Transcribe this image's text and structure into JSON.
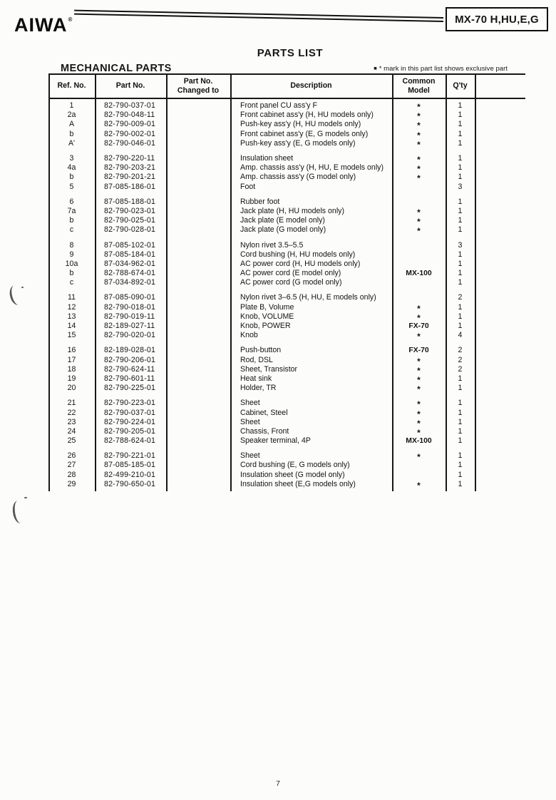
{
  "brand": {
    "logo": "AIWA",
    "mark": "®"
  },
  "model_box": {
    "label": "MX-70 H,HU,E,G"
  },
  "page": {
    "title": "PARTS LIST",
    "section": "MECHANICAL PARTS",
    "legend_bullet": "■",
    "legend_text": "* mark in this part list shows exclusive part",
    "page_number": "7"
  },
  "table": {
    "headers": {
      "ref": "Ref. No.",
      "part": "Part No.",
      "changed_line1": "Part No.",
      "changed_line2": "Changed to",
      "description": "Description",
      "common_line1": "Common",
      "common_line2": "Model",
      "qty": "Q'ty"
    },
    "groups": [
      {
        "rows": [
          {
            "ref": "1",
            "part": "82-790-037-01",
            "changed": "",
            "desc": "Front panel CU ass'y F",
            "common": "*",
            "qty": "1"
          },
          {
            "ref": "2a",
            "part": "82-790-048-11",
            "changed": "",
            "desc": "Front cabinet ass'y (H, HU models only)",
            "common": "*",
            "qty": "1"
          },
          {
            "ref": "A",
            "part": "82-790-009-01",
            "changed": "",
            "desc": "Push-key ass'y (H, HU models only)",
            "common": "*",
            "qty": "1"
          },
          {
            "ref": "b",
            "part": "82-790-002-01",
            "changed": "",
            "desc": "Front cabinet ass'y (E, G models only)",
            "common": "*",
            "qty": "1"
          },
          {
            "ref": "A'",
            "part": "82-790-046-01",
            "changed": "",
            "desc": "Push-key ass'y (E, G models only)",
            "common": "*",
            "qty": "1"
          }
        ]
      },
      {
        "rows": [
          {
            "ref": "3",
            "part": "82-790-220-11",
            "changed": "",
            "desc": "Insulation sheet",
            "common": "*",
            "qty": "1"
          },
          {
            "ref": "4a",
            "part": "82-790-203-21",
            "changed": "",
            "desc": "Amp. chassis ass'y (H, HU, E models only)",
            "common": "*",
            "qty": "1"
          },
          {
            "ref": "b",
            "part": "82-790-201-21",
            "changed": "",
            "desc": "Amp. chassis ass'y (G model only)",
            "common": "*",
            "qty": "1"
          },
          {
            "ref": "5",
            "part": "87-085-186-01",
            "changed": "",
            "desc": "Foot",
            "common": "",
            "qty": "3"
          }
        ]
      },
      {
        "rows": [
          {
            "ref": "6",
            "part": "87-085-188-01",
            "changed": "",
            "desc": "Rubber foot",
            "common": "",
            "qty": "1"
          },
          {
            "ref": "7a",
            "part": "82-790-023-01",
            "changed": "",
            "desc": "Jack plate (H, HU models only)",
            "common": "*",
            "qty": "1"
          },
          {
            "ref": "b",
            "part": "82-790-025-01",
            "changed": "",
            "desc": "Jack plate (E model only)",
            "common": "*",
            "qty": "1"
          },
          {
            "ref": "c",
            "part": "82-790-028-01",
            "changed": "",
            "desc": "Jack plate (G model only)",
            "common": "*",
            "qty": "1"
          }
        ]
      },
      {
        "rows": [
          {
            "ref": "8",
            "part": "87-085-102-01",
            "changed": "",
            "desc": "Nylon rivet 3.5–5.5",
            "common": "",
            "qty": "3"
          },
          {
            "ref": "9",
            "part": "87-085-184-01",
            "changed": "",
            "desc": "Cord bushing (H, HU models only)",
            "common": "",
            "qty": "1"
          },
          {
            "ref": "10a",
            "part": "87-034-962-01",
            "changed": "",
            "desc": "AC power cord (H, HU models only)",
            "common": "",
            "qty": "1"
          },
          {
            "ref": "b",
            "part": "82-788-674-01",
            "changed": "",
            "desc": "AC power cord (E model only)",
            "common": "MX-100",
            "qty": "1"
          },
          {
            "ref": "c",
            "part": "87-034-892-01",
            "changed": "",
            "desc": "AC power cord (G model only)",
            "common": "",
            "qty": "1"
          }
        ]
      },
      {
        "rows": [
          {
            "ref": "11",
            "part": "87-085-090-01",
            "changed": "",
            "desc": "Nylon rivet 3–6.5 (H, HU, E models only)",
            "common": "",
            "qty": "2"
          },
          {
            "ref": "12",
            "part": "82-790-018-01",
            "changed": "",
            "desc": "Plate B, Volume",
            "common": "*",
            "qty": "1"
          },
          {
            "ref": "13",
            "part": "82-790-019-11",
            "changed": "",
            "desc": "Knob, VOLUME",
            "common": "*",
            "qty": "1"
          },
          {
            "ref": "14",
            "part": "82-189-027-11",
            "changed": "",
            "desc": "Knob, POWER",
            "common": "FX-70",
            "qty": "1"
          },
          {
            "ref": "15",
            "part": "82-790-020-01",
            "changed": "",
            "desc": "Knob",
            "common": "*",
            "qty": "4"
          }
        ]
      },
      {
        "rows": [
          {
            "ref": "16",
            "part": "82-189-028-01",
            "changed": "",
            "desc": "Push-button",
            "common": "FX-70",
            "qty": "2"
          },
          {
            "ref": "17",
            "part": "82-790-206-01",
            "changed": "",
            "desc": "Rod, DSL",
            "common": "*",
            "qty": "2"
          },
          {
            "ref": "18",
            "part": "82-790-624-11",
            "changed": "",
            "desc": "Sheet, Transistor",
            "common": "*",
            "qty": "2"
          },
          {
            "ref": "19",
            "part": "82-790-601-11",
            "changed": "",
            "desc": "Heat sink",
            "common": "*",
            "qty": "1"
          },
          {
            "ref": "20",
            "part": "82-790-225-01",
            "changed": "",
            "desc": "Holder, TR",
            "common": "*",
            "qty": "1"
          }
        ]
      },
      {
        "rows": [
          {
            "ref": "21",
            "part": "82-790-223-01",
            "changed": "",
            "desc": "Sheet",
            "common": "*",
            "qty": "1"
          },
          {
            "ref": "22",
            "part": "82-790-037-01",
            "changed": "",
            "desc": "Cabinet, Steel",
            "common": "*",
            "qty": "1"
          },
          {
            "ref": "23",
            "part": "82-790-224-01",
            "changed": "",
            "desc": "Sheet",
            "common": "*",
            "qty": "1"
          },
          {
            "ref": "24",
            "part": "82-790-205-01",
            "changed": "",
            "desc": "Chassis, Front",
            "common": "*",
            "qty": "1"
          },
          {
            "ref": "25",
            "part": "82-788-624-01",
            "changed": "",
            "desc": "Speaker terminal, 4P",
            "common": "MX-100",
            "qty": "1"
          }
        ]
      },
      {
        "rows": [
          {
            "ref": "26",
            "part": "82-790-221-01",
            "changed": "",
            "desc": "Sheet",
            "common": "*",
            "qty": "1"
          },
          {
            "ref": "27",
            "part": "87-085-185-01",
            "changed": "",
            "desc": "Cord bushing (E, G models only)",
            "common": "",
            "qty": "1"
          },
          {
            "ref": "28",
            "part": "82-499-210-01",
            "changed": "",
            "desc": "Insulation sheet (G model only)",
            "common": "",
            "qty": "1"
          },
          {
            "ref": "29",
            "part": "82-790-650-01",
            "changed": "",
            "desc": "Insulation sheet (E,G models only)",
            "common": "*",
            "qty": "1"
          }
        ]
      }
    ]
  }
}
